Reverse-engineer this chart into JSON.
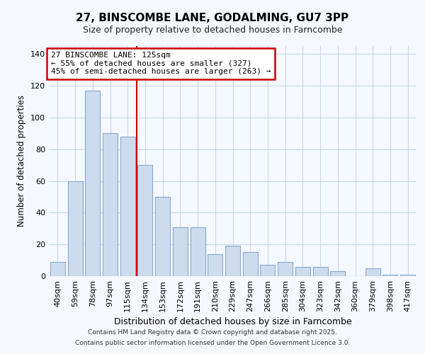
{
  "title1": "27, BINSCOMBE LANE, GODALMING, GU7 3PP",
  "title2": "Size of property relative to detached houses in Farncombe",
  "xlabel": "Distribution of detached houses by size in Farncombe",
  "ylabel": "Number of detached properties",
  "categories": [
    "40sqm",
    "59sqm",
    "78sqm",
    "97sqm",
    "115sqm",
    "134sqm",
    "153sqm",
    "172sqm",
    "191sqm",
    "210sqm",
    "229sqm",
    "247sqm",
    "266sqm",
    "285sqm",
    "304sqm",
    "323sqm",
    "342sqm",
    "360sqm",
    "379sqm",
    "398sqm",
    "417sqm"
  ],
  "values": [
    9,
    60,
    117,
    90,
    88,
    70,
    50,
    31,
    31,
    14,
    19,
    15,
    7,
    9,
    6,
    6,
    3,
    0,
    5,
    1,
    1
  ],
  "bar_color": "#ccdcee",
  "bar_edge_color": "#88aad0",
  "vline_color": "#cc0000",
  "vline_pos": 4.5,
  "annotation_line1": "27 BINSCOMBE LANE: 125sqm",
  "annotation_line2": "← 55% of detached houses are smaller (327)",
  "annotation_line3": "45% of semi-detached houses are larger (263) →",
  "annotation_box_edge": "#cc0000",
  "ylim": [
    0,
    145
  ],
  "yticks": [
    0,
    20,
    40,
    60,
    80,
    100,
    120,
    140
  ],
  "footer1": "Contains HM Land Registry data © Crown copyright and database right 2025.",
  "footer2": "Contains public sector information licensed under the Open Government Licence 3.0.",
  "bg_color": "#f5f8ff",
  "grid_color": "#c8d8f0"
}
